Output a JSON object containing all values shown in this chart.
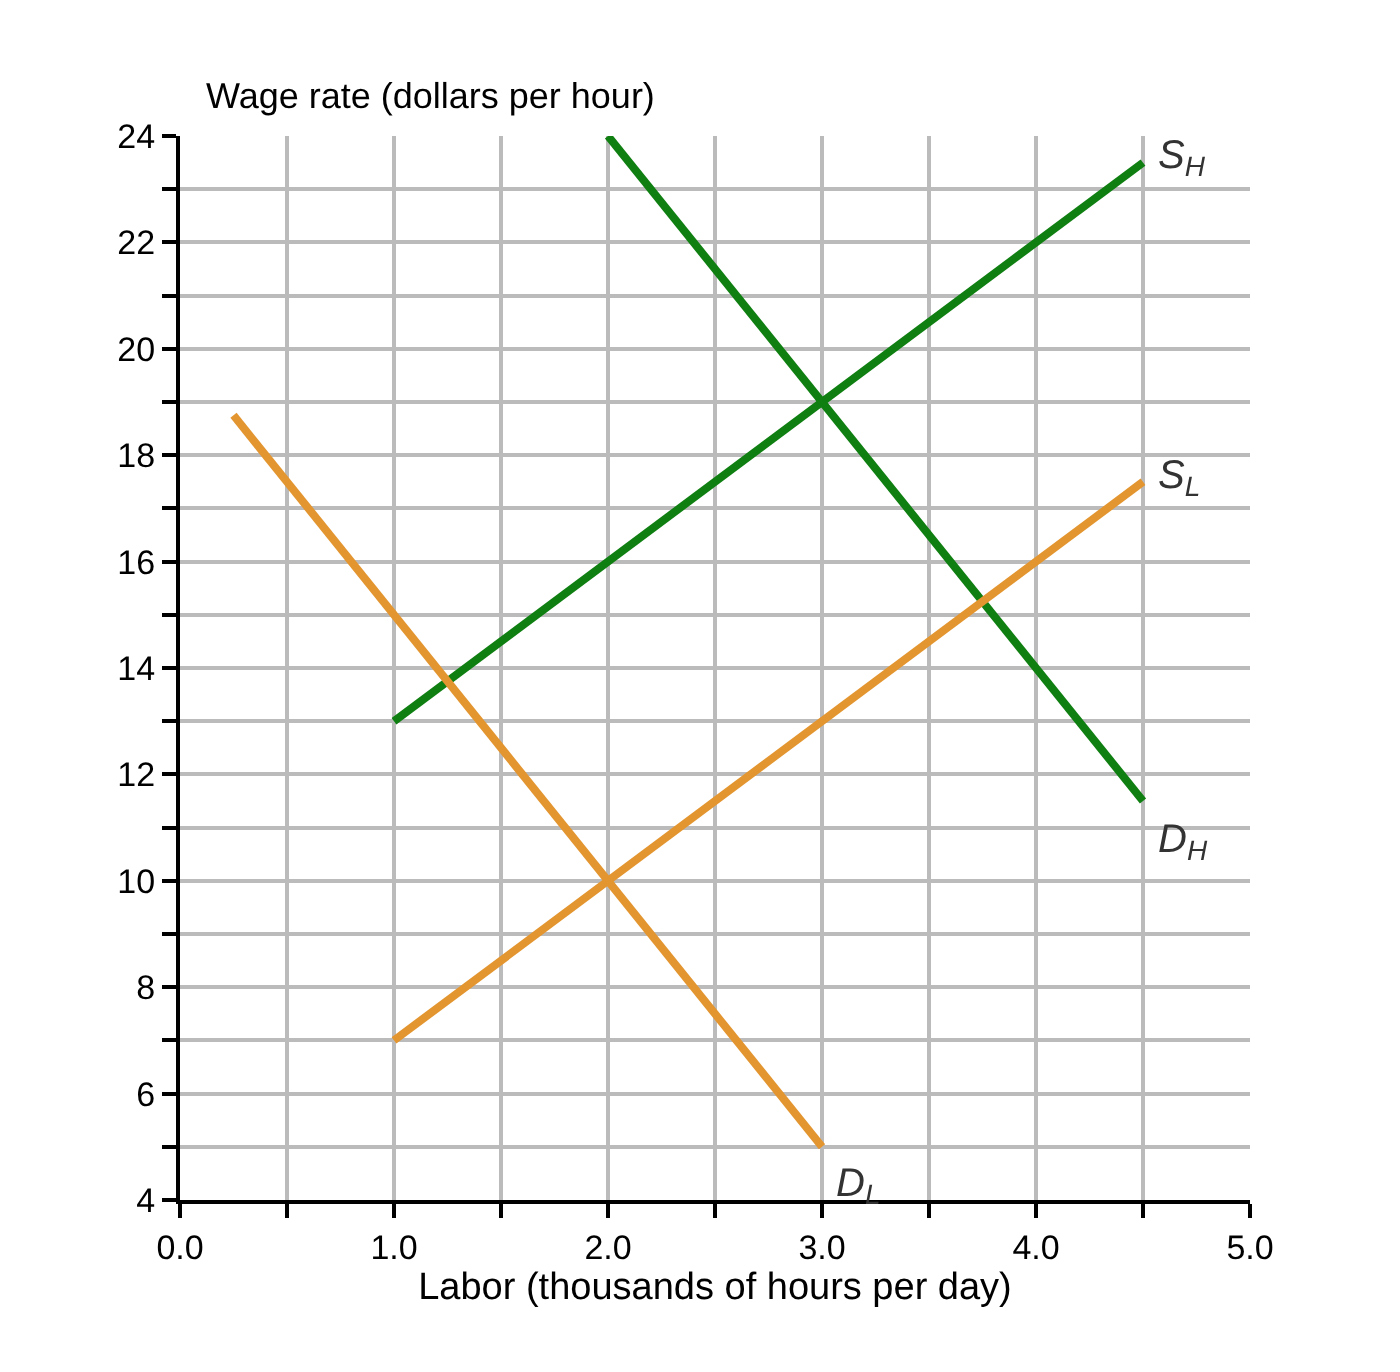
{
  "chart_data": {
    "type": "line",
    "xlabel": "Labor (thousands of hours per day)",
    "ylabel": "Wage rate (dollars per hour)",
    "xlim": [
      0,
      5
    ],
    "ylim": [
      4,
      24
    ],
    "xticks": [
      {
        "value": 0,
        "label": "0.0"
      },
      {
        "value": 0.5,
        "label": null
      },
      {
        "value": 1,
        "label": "1.0"
      },
      {
        "value": 1.5,
        "label": null
      },
      {
        "value": 2,
        "label": "2.0"
      },
      {
        "value": 2.5,
        "label": null
      },
      {
        "value": 3,
        "label": "3.0"
      },
      {
        "value": 3.5,
        "label": null
      },
      {
        "value": 4,
        "label": "4.0"
      },
      {
        "value": 4.5,
        "label": null
      },
      {
        "value": 5,
        "label": "5.0"
      }
    ],
    "yticks": [
      4,
      {
        "value": 5,
        "label": null
      },
      6,
      {
        "value": 7,
        "label": null
      },
      8,
      {
        "value": 9,
        "label": null
      },
      10,
      {
        "value": 11,
        "label": null
      },
      12,
      {
        "value": 13,
        "label": null
      },
      14,
      {
        "value": 15,
        "label": null
      },
      16,
      {
        "value": 17,
        "label": null
      },
      18,
      {
        "value": 19,
        "label": null
      },
      20,
      {
        "value": 21,
        "label": null
      },
      22,
      {
        "value": 23,
        "label": null
      },
      24
    ],
    "grid": true,
    "series": [
      {
        "name": "S$_{H}$",
        "color": "#0f7f12",
        "x": [
          1,
          4.5
        ],
        "values": [
          13,
          23.5
        ]
      },
      {
        "name": "D$_{H}$",
        "color": "#0f7f12",
        "x": [
          2,
          4.5
        ],
        "values": [
          24,
          11.5
        ]
      },
      {
        "name": "S$_{L}$",
        "color": "#e39530",
        "x": [
          1,
          4.5
        ],
        "values": [
          7,
          17.5
        ]
      },
      {
        "name": "D$_{L}$",
        "color": "#e39530",
        "x": [
          0.25,
          3
        ],
        "values": [
          18.75,
          5
        ]
      }
    ]
  }
}
